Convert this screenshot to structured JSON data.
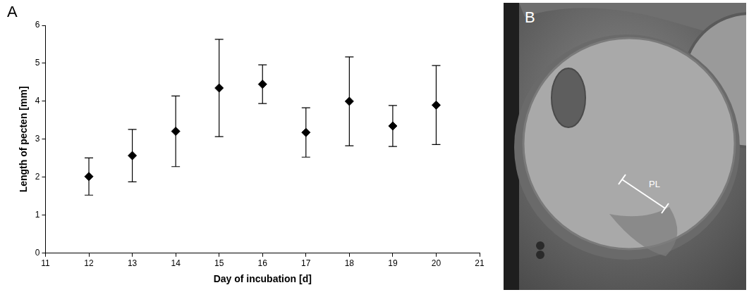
{
  "chart_data": {
    "type": "scatter",
    "panel_label": "A",
    "xlabel": "Day of incubation [d]",
    "ylabel": "Length of pecten [mm]",
    "x": [
      12,
      13,
      14,
      15,
      16,
      17,
      18,
      19,
      20
    ],
    "values": [
      2.02,
      2.57,
      3.21,
      4.35,
      4.45,
      3.18,
      4.0,
      3.35,
      3.9
    ],
    "errors": [
      0.49,
      0.69,
      0.93,
      1.28,
      0.51,
      0.65,
      1.17,
      0.54,
      1.04
    ],
    "color": "#000000",
    "marker": "diamond",
    "grid": false,
    "xlim": [
      11,
      21
    ],
    "xticks": [
      11,
      12,
      13,
      14,
      15,
      16,
      17,
      18,
      19,
      20,
      21
    ],
    "ylim": [
      0,
      6
    ],
    "yticks": [
      0,
      1,
      2,
      3,
      4,
      5,
      6
    ]
  },
  "image_panel": {
    "panel_label": "B",
    "annotation": "PL"
  }
}
